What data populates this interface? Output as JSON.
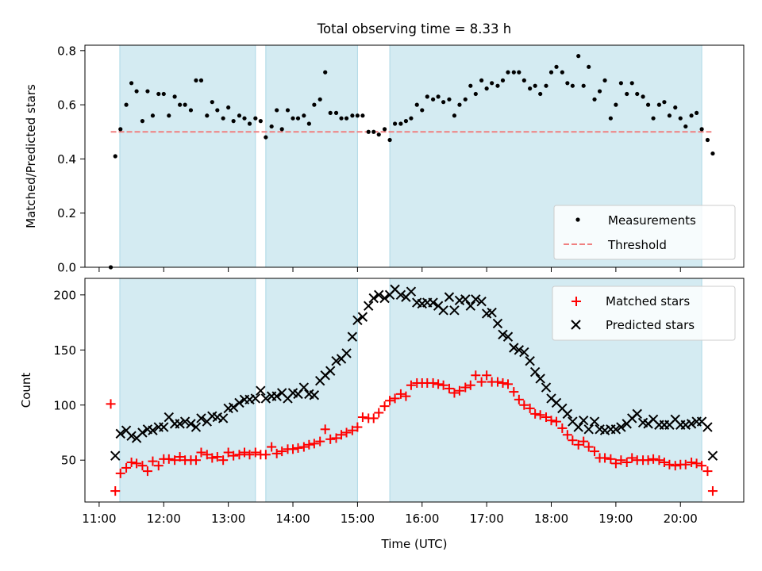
{
  "title": "Total observing time = 8.33 h",
  "colors": {
    "span": "#add8e6",
    "measurement": "#000000",
    "threshold": "#f08080",
    "matched": "#ff0000",
    "predicted": "#000000"
  },
  "chart_data": [
    {
      "type": "scatter",
      "ylabel": "Matched/Predicted stars",
      "xlabel": "",
      "xlim": [
        10.78,
        20.98
      ],
      "ylim": [
        0,
        0.82
      ],
      "yticks": [
        0,
        0.2,
        0.4,
        0.6,
        0.8
      ],
      "yticklabels": [
        "0.0",
        "0.2",
        "0.4",
        "0.6",
        "0.8"
      ],
      "legend": {
        "position": "lower-right",
        "entries": [
          "Measurements",
          "Threshold"
        ]
      },
      "threshold": {
        "name": "Threshold",
        "value": 0.5,
        "x_range": [
          11.18,
          20.48
        ]
      },
      "observing_spans": [
        [
          11.32,
          13.42
        ],
        [
          13.58,
          15.0
        ],
        [
          15.5,
          20.33
        ]
      ],
      "series": [
        {
          "name": "Measurements",
          "x": [
            11.18,
            11.25,
            11.33,
            11.42,
            11.5,
            11.58,
            11.67,
            11.75,
            11.83,
            11.92,
            12.0,
            12.08,
            12.17,
            12.25,
            12.33,
            12.42,
            12.5,
            12.58,
            12.67,
            12.75,
            12.83,
            12.92,
            13.0,
            13.08,
            13.17,
            13.25,
            13.33,
            13.42,
            13.5,
            13.58,
            13.67,
            13.75,
            13.83,
            13.92,
            14.0,
            14.08,
            14.17,
            14.25,
            14.33,
            14.42,
            14.5,
            14.58,
            14.67,
            14.75,
            14.83,
            14.92,
            15.0,
            15.08,
            15.17,
            15.25,
            15.33,
            15.42,
            15.5,
            15.58,
            15.67,
            15.75,
            15.83,
            15.92,
            16.0,
            16.08,
            16.17,
            16.25,
            16.33,
            16.42,
            16.5,
            16.58,
            16.67,
            16.75,
            16.83,
            16.92,
            17.0,
            17.08,
            17.17,
            17.25,
            17.33,
            17.42,
            17.5,
            17.58,
            17.67,
            17.75,
            17.83,
            17.92,
            18.0,
            18.08,
            18.17,
            18.25,
            18.33,
            18.42,
            18.5,
            18.58,
            18.67,
            18.75,
            18.83,
            18.92,
            19.0,
            19.08,
            19.17,
            19.25,
            19.33,
            19.42,
            19.5,
            19.58,
            19.67,
            19.75,
            19.83,
            19.92,
            20.0,
            20.08,
            20.17,
            20.25,
            20.33,
            20.42,
            20.5
          ],
          "y": [
            0.0,
            0.41,
            0.51,
            0.6,
            0.68,
            0.65,
            0.54,
            0.65,
            0.56,
            0.64,
            0.64,
            0.56,
            0.63,
            0.6,
            0.6,
            0.58,
            0.69,
            0.69,
            0.56,
            0.61,
            0.58,
            0.55,
            0.59,
            0.54,
            0.56,
            0.55,
            0.53,
            0.55,
            0.54,
            0.48,
            0.52,
            0.58,
            0.51,
            0.58,
            0.55,
            0.55,
            0.56,
            0.53,
            0.6,
            0.62,
            0.72,
            0.57,
            0.57,
            0.55,
            0.55,
            0.56,
            0.56,
            0.56,
            0.5,
            0.5,
            0.49,
            0.51,
            0.47,
            0.53,
            0.53,
            0.54,
            0.55,
            0.6,
            0.58,
            0.63,
            0.62,
            0.63,
            0.61,
            0.62,
            0.56,
            0.6,
            0.62,
            0.67,
            0.64,
            0.69,
            0.66,
            0.68,
            0.67,
            0.69,
            0.72,
            0.72,
            0.72,
            0.69,
            0.66,
            0.67,
            0.64,
            0.67,
            0.72,
            0.74,
            0.72,
            0.68,
            0.67,
            0.78,
            0.67,
            0.74,
            0.62,
            0.65,
            0.69,
            0.55,
            0.6,
            0.68,
            0.64,
            0.68,
            0.64,
            0.63,
            0.6,
            0.55,
            0.6,
            0.61,
            0.56,
            0.59,
            0.55,
            0.52,
            0.56,
            0.57,
            0.51,
            0.47,
            0.42
          ]
        }
      ]
    },
    {
      "type": "scatter",
      "ylabel": "Count",
      "xlabel": "Time (UTC)",
      "xlim": [
        10.78,
        20.98
      ],
      "ylim": [
        12,
        215
      ],
      "yticks": [
        50,
        100,
        150,
        200
      ],
      "yticklabels": [
        "50",
        "100",
        "150",
        "200"
      ],
      "xticks": [
        11,
        12,
        13,
        14,
        15,
        16,
        17,
        18,
        19,
        20
      ],
      "xticklabels": [
        "11:00",
        "12:00",
        "13:00",
        "14:00",
        "15:00",
        "16:00",
        "17:00",
        "18:00",
        "19:00",
        "20:00"
      ],
      "legend": {
        "position": "top-right",
        "entries": [
          "Matched stars",
          "Predicted stars"
        ]
      },
      "observing_spans": [
        [
          11.32,
          13.42
        ],
        [
          13.58,
          15.0
        ],
        [
          15.5,
          20.33
        ]
      ],
      "series": [
        {
          "name": "Matched stars",
          "x": [
            11.18,
            11.25,
            11.33,
            11.42,
            11.5,
            11.58,
            11.67,
            11.75,
            11.83,
            11.92,
            12.0,
            12.08,
            12.17,
            12.25,
            12.33,
            12.42,
            12.5,
            12.58,
            12.67,
            12.75,
            12.83,
            12.92,
            13.0,
            13.08,
            13.17,
            13.25,
            13.33,
            13.42,
            13.5,
            13.58,
            13.67,
            13.75,
            13.83,
            13.92,
            14.0,
            14.08,
            14.17,
            14.25,
            14.33,
            14.42,
            14.5,
            14.58,
            14.67,
            14.75,
            14.83,
            14.92,
            15.0,
            15.08,
            15.17,
            15.25,
            15.33,
            15.42,
            15.5,
            15.58,
            15.67,
            15.75,
            15.83,
            15.92,
            16.0,
            16.08,
            16.17,
            16.25,
            16.33,
            16.42,
            16.5,
            16.58,
            16.67,
            16.75,
            16.83,
            16.92,
            17.0,
            17.08,
            17.17,
            17.25,
            17.33,
            17.42,
            17.5,
            17.58,
            17.67,
            17.75,
            17.83,
            17.92,
            18.0,
            18.08,
            18.17,
            18.25,
            18.33,
            18.42,
            18.5,
            18.58,
            18.67,
            18.75,
            18.83,
            18.92,
            19.0,
            19.08,
            19.17,
            19.25,
            19.33,
            19.42,
            19.5,
            19.58,
            19.67,
            19.75,
            19.83,
            19.92,
            20.0,
            20.08,
            20.17,
            20.25,
            20.33,
            20.42,
            20.5
          ],
          "y": [
            101,
            22,
            38,
            43,
            48,
            47,
            45,
            40,
            49,
            45,
            51,
            51,
            50,
            53,
            50,
            50,
            50,
            57,
            55,
            52,
            53,
            50,
            57,
            54,
            55,
            57,
            55,
            57,
            55,
            55,
            62,
            56,
            58,
            60,
            60,
            61,
            62,
            64,
            65,
            67,
            78,
            69,
            70,
            73,
            75,
            77,
            80,
            89,
            88,
            88,
            93,
            99,
            104,
            106,
            110,
            108,
            118,
            120,
            120,
            120,
            120,
            119,
            118,
            115,
            111,
            113,
            116,
            118,
            127,
            121,
            127,
            121,
            121,
            120,
            119,
            112,
            105,
            100,
            97,
            92,
            91,
            89,
            86,
            85,
            79,
            73,
            68,
            64,
            67,
            62,
            58,
            52,
            52,
            51,
            47,
            50,
            48,
            52,
            50,
            50,
            50,
            51,
            50,
            48,
            46,
            45,
            46,
            46,
            48,
            47,
            45,
            40,
            22
          ]
        },
        {
          "name": "Predicted stars",
          "x": [
            11.25,
            11.33,
            11.42,
            11.5,
            11.58,
            11.67,
            11.75,
            11.83,
            11.92,
            12.0,
            12.08,
            12.17,
            12.25,
            12.33,
            12.42,
            12.5,
            12.58,
            12.67,
            12.75,
            12.83,
            12.92,
            13.0,
            13.08,
            13.17,
            13.25,
            13.33,
            13.42,
            13.5,
            13.58,
            13.67,
            13.75,
            13.83,
            13.92,
            14.0,
            14.08,
            14.17,
            14.25,
            14.33,
            14.42,
            14.5,
            14.58,
            14.67,
            14.75,
            14.83,
            14.92,
            15.0,
            15.08,
            15.17,
            15.25,
            15.33,
            15.42,
            15.5,
            15.58,
            15.67,
            15.75,
            15.83,
            15.92,
            16.0,
            16.08,
            16.17,
            16.25,
            16.33,
            16.42,
            16.5,
            16.58,
            16.67,
            16.75,
            16.83,
            16.92,
            17.0,
            17.08,
            17.17,
            17.25,
            17.33,
            17.42,
            17.5,
            17.58,
            17.67,
            17.75,
            17.83,
            17.92,
            18.0,
            18.08,
            18.17,
            18.25,
            18.33,
            18.42,
            18.5,
            18.58,
            18.67,
            18.75,
            18.83,
            18.92,
            19.0,
            19.08,
            19.17,
            19.25,
            19.33,
            19.42,
            19.5,
            19.58,
            19.67,
            19.75,
            19.83,
            19.92,
            20.0,
            20.08,
            20.17,
            20.25,
            20.33,
            20.42,
            20.5
          ],
          "y": [
            54,
            74,
            77,
            72,
            70,
            75,
            78,
            77,
            80,
            80,
            89,
            83,
            83,
            85,
            83,
            80,
            88,
            85,
            90,
            89,
            88,
            97,
            98,
            102,
            105,
            105,
            106,
            113,
            106,
            108,
            108,
            111,
            106,
            111,
            110,
            116,
            110,
            109,
            122,
            127,
            131,
            140,
            142,
            147,
            162,
            177,
            180,
            190,
            197,
            200,
            197,
            200,
            205,
            200,
            198,
            203,
            193,
            192,
            193,
            193,
            190,
            186,
            198,
            186,
            195,
            196,
            190,
            196,
            194,
            183,
            184,
            174,
            164,
            162,
            152,
            150,
            148,
            140,
            130,
            124,
            116,
            106,
            102,
            97,
            92,
            85,
            80,
            86,
            78,
            85,
            78,
            77,
            78,
            78,
            80,
            83,
            88,
            92,
            84,
            83,
            87,
            82,
            82,
            82,
            87,
            82,
            82,
            83,
            85,
            85,
            80,
            54
          ]
        }
      ]
    }
  ]
}
